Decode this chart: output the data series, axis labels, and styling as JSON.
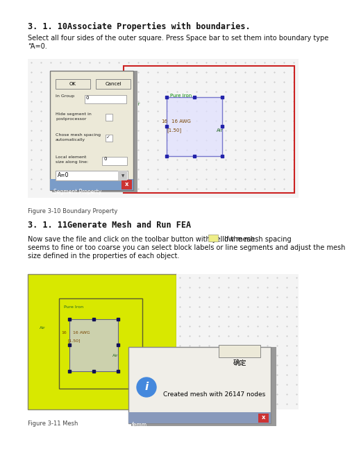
{
  "bg_color": "#ffffff",
  "heading1": "3. 1. 10Associate Properties with boundaries.",
  "body1": "Select all four sides of the outer square. Press Space bar to set them into boundary type\n“A=0.",
  "fig_caption1": "Figure 3-10 Boundary Property",
  "heading2": "3. 1. 11Generate Mesh and Run FEA",
  "body2_line1": "Now save the file and click on the toolbar button with yellow mesh",
  "body2_line2": ". If the mesh spacing",
  "body2_rest": "seems to fine or too coarse you can select block labels or line segments and adjust the mesh\nsize defined in the properties of each object.",
  "fig_caption2": "Figure 3-11 Mesh",
  "dlg_title": "Segment Property",
  "dlg_dropdown": "A=0",
  "dlg_label1": "Local element\nsize along line:",
  "dlg_label2": "Chose mesh spacing\nautomatically",
  "dlg_label3": "Hide segment in\npostprocessor",
  "dlg_label4": "In Group",
  "dlg_ok": "OK",
  "dlg_cancel": "Cancel",
  "femm_title": "femm",
  "femm_msg": "Created mesh with 26147 nodes",
  "femm_btn": "确定",
  "label_air1": "Air",
  "label_air2": "Air",
  "label_pureiron": "Pure Iron",
  "label_16awg": "16 AWG",
  "label_150": "[1.50]",
  "label_16": "16"
}
